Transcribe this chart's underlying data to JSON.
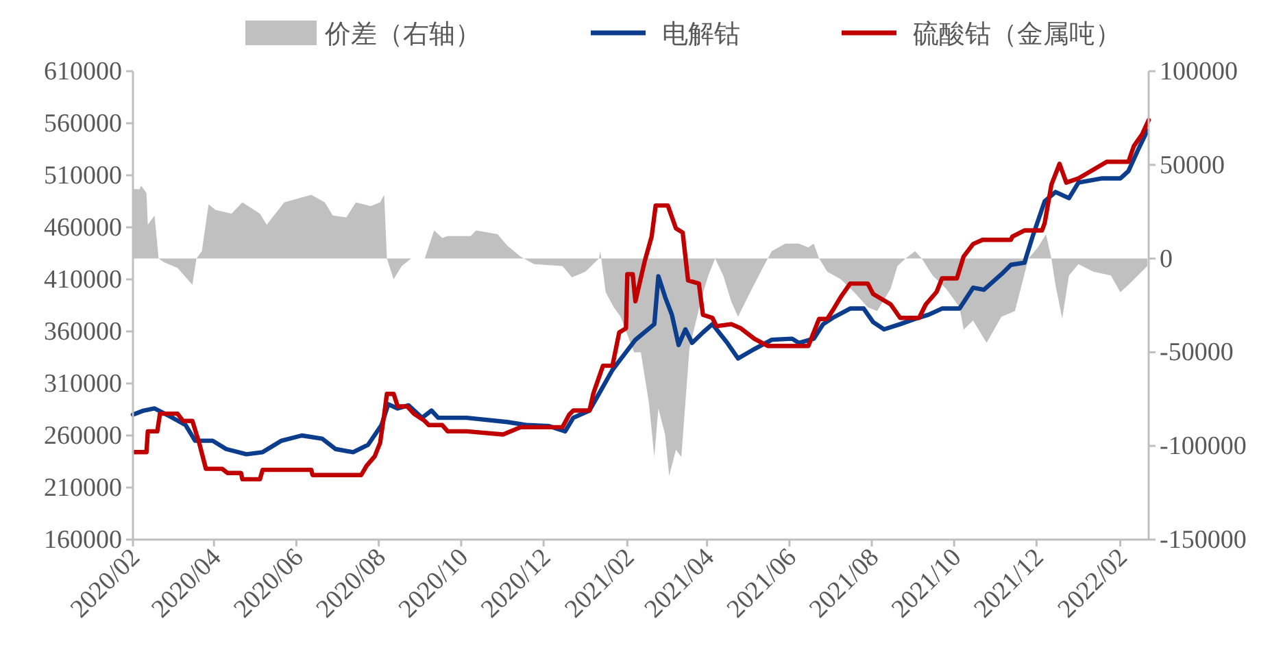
{
  "chart_data": {
    "type": "line",
    "legend": "top",
    "grid": false,
    "xlim": [
      "2020-02-01",
      "2022-02-22"
    ],
    "xticks": [
      {
        "value": "2020-02-01",
        "label": "2020/02"
      },
      {
        "value": "2020-04-01",
        "label": "2020/04"
      },
      {
        "value": "2020-06-01",
        "label": "2020/06"
      },
      {
        "value": "2020-08-01",
        "label": "2020/08"
      },
      {
        "value": "2020-10-01",
        "label": "2020/10"
      },
      {
        "value": "2020-12-01",
        "label": "2020/12"
      },
      {
        "value": "2021-02-01",
        "label": "2021/02"
      },
      {
        "value": "2021-04-01",
        "label": "2021/04"
      },
      {
        "value": "2021-06-01",
        "label": "2021/06"
      },
      {
        "value": "2021-08-01",
        "label": "2021/08"
      },
      {
        "value": "2021-10-01",
        "label": "2021/10"
      },
      {
        "value": "2021-12-01",
        "label": "2021/12"
      },
      {
        "value": "2022-02-01",
        "label": "2022/02"
      }
    ],
    "ylim": [
      160000,
      610000
    ],
    "yticks": [
      160000,
      210000,
      260000,
      310000,
      360000,
      410000,
      460000,
      510000,
      560000,
      610000
    ],
    "y2lim": [
      -150000,
      100000
    ],
    "y2ticks": [
      -150000,
      -100000,
      -50000,
      0,
      50000,
      100000
    ],
    "series": [
      {
        "name": "价差（右轴）",
        "type": "area",
        "axis": "y2",
        "color": "#c0c0c0",
        "x": [
          "2020-02-01",
          "2020-02-06",
          "2020-02-07",
          "2020-02-11",
          "2020-02-12",
          "2020-02-17",
          "2020-02-20",
          "2020-02-24",
          "2020-03-05",
          "2020-03-16",
          "2020-03-19",
          "2020-03-23",
          "2020-03-28",
          "2020-04-02",
          "2020-04-14",
          "2020-04-22",
          "2020-05-05",
          "2020-05-10",
          "2020-05-23",
          "2020-06-12",
          "2020-06-22",
          "2020-06-28",
          "2020-07-08",
          "2020-07-15",
          "2020-07-26",
          "2020-08-02",
          "2020-08-05",
          "2020-08-07",
          "2020-08-12",
          "2020-08-18",
          "2020-08-25",
          "2020-09-04",
          "2020-09-11",
          "2020-09-17",
          "2020-09-21",
          "2020-10-05",
          "2020-10-08",
          "2020-10-12",
          "2020-10-28",
          "2020-11-04",
          "2020-11-14",
          "2020-11-24",
          "2020-12-15",
          "2020-12-22",
          "2021-01-01",
          "2021-01-11",
          "2021-01-12",
          "2021-01-16",
          "2021-01-22",
          "2021-01-27",
          "2021-02-06",
          "2021-02-11",
          "2021-02-17",
          "2021-02-21",
          "2021-02-24",
          "2021-03-01",
          "2021-03-04",
          "2021-03-09",
          "2021-03-13",
          "2021-03-16",
          "2021-03-19",
          "2021-03-28",
          "2021-04-02",
          "2021-04-07",
          "2021-04-13",
          "2021-04-19",
          "2021-04-24",
          "2021-05-03",
          "2021-05-13",
          "2021-05-19",
          "2021-05-29",
          "2021-06-08",
          "2021-06-15",
          "2021-06-19",
          "2021-06-23",
          "2021-06-29",
          "2021-07-09",
          "2021-07-19",
          "2021-07-29",
          "2021-08-05",
          "2021-08-15",
          "2021-08-20",
          "2021-08-26",
          "2021-09-02",
          "2021-09-07",
          "2021-09-15",
          "2021-09-25",
          "2021-10-05",
          "2021-10-08",
          "2021-10-15",
          "2021-10-25",
          "2021-11-05",
          "2021-11-15",
          "2021-11-25",
          "2021-12-02",
          "2021-12-08",
          "2021-12-12",
          "2021-12-15",
          "2021-12-20",
          "2021-12-25",
          "2022-01-01",
          "2022-01-12",
          "2022-01-25",
          "2022-02-01",
          "2022-02-07",
          "2022-02-14",
          "2022-02-21"
        ],
        "values": [
          37000,
          37000,
          39000,
          35000,
          18000,
          23000,
          0,
          -2000,
          -5000,
          -14000,
          0,
          4000,
          29000,
          26000,
          24000,
          30000,
          24000,
          18000,
          30000,
          34000,
          30000,
          23000,
          22000,
          30000,
          28000,
          30000,
          34000,
          0,
          -11000,
          -4000,
          0,
          0,
          15000,
          11000,
          12000,
          12000,
          12000,
          15000,
          13000,
          7000,
          1000,
          -3000,
          -4000,
          -10000,
          -7000,
          0,
          4000,
          -18000,
          -26000,
          -31000,
          -50000,
          -50000,
          -77000,
          -106000,
          -80000,
          -94000,
          -116000,
          -102000,
          -106000,
          -77000,
          -48000,
          -21000,
          -9000,
          0,
          -9000,
          -23000,
          -31000,
          -18000,
          -4000,
          4000,
          8000,
          8000,
          6000,
          8000,
          0,
          -7000,
          -11000,
          -18000,
          -26000,
          -28000,
          -16000,
          -4000,
          0,
          4000,
          0,
          -9000,
          -16000,
          -26000,
          -38000,
          -33000,
          -45000,
          -31000,
          -28000,
          0,
          6000,
          13000,
          0,
          -14000,
          -32000,
          -9000,
          -3000,
          -7000,
          -9000,
          -18000,
          -14000,
          -9000,
          -4000
        ]
      },
      {
        "name": "电解钴",
        "color": "#0c3d8c",
        "x": [
          "2020-02-01",
          "2020-02-09",
          "2020-02-17",
          "2020-02-29",
          "2020-03-11",
          "2020-03-18",
          "2020-03-31",
          "2020-04-10",
          "2020-04-25",
          "2020-05-07",
          "2020-05-21",
          "2020-06-05",
          "2020-06-20",
          "2020-06-30",
          "2020-07-13",
          "2020-07-24",
          "2020-08-03",
          "2020-08-08",
          "2020-08-15",
          "2020-08-23",
          "2020-09-02",
          "2020-09-09",
          "2020-09-14",
          "2020-10-05",
          "2020-11-04",
          "2020-11-19",
          "2020-12-05",
          "2020-12-17",
          "2020-12-23",
          "2021-01-04",
          "2021-01-11",
          "2021-01-21",
          "2021-01-31",
          "2021-02-07",
          "2021-02-21",
          "2021-02-24",
          "2021-03-01",
          "2021-03-06",
          "2021-03-11",
          "2021-03-16",
          "2021-03-21",
          "2021-03-29",
          "2021-04-05",
          "2021-04-16",
          "2021-04-24",
          "2021-05-06",
          "2021-05-19",
          "2021-06-03",
          "2021-06-08",
          "2021-06-19",
          "2021-06-26",
          "2021-07-03",
          "2021-07-16",
          "2021-07-26",
          "2021-08-02",
          "2021-08-10",
          "2021-08-22",
          "2021-09-02",
          "2021-09-12",
          "2021-09-22",
          "2021-10-05",
          "2021-10-15",
          "2021-10-23",
          "2021-11-05",
          "2021-11-12",
          "2021-11-22",
          "2021-11-28",
          "2021-12-07",
          "2021-12-15",
          "2021-12-25",
          "2022-01-01",
          "2022-01-18",
          "2022-02-01",
          "2022-02-07",
          "2022-02-14",
          "2022-02-21"
        ],
        "values": [
          280000,
          284000,
          286000,
          278000,
          270000,
          255000,
          255000,
          247000,
          242000,
          244000,
          255000,
          260000,
          257000,
          247000,
          244000,
          251000,
          270000,
          290000,
          286000,
          289000,
          277000,
          284000,
          277000,
          277000,
          273000,
          270000,
          269000,
          264000,
          277000,
          284000,
          300000,
          323000,
          340000,
          352000,
          367000,
          413000,
          393000,
          376000,
          347000,
          362000,
          349000,
          359000,
          367000,
          349000,
          334000,
          343000,
          352000,
          353000,
          349000,
          353000,
          367000,
          373000,
          382000,
          382000,
          369000,
          362000,
          367000,
          372000,
          376000,
          382000,
          382000,
          402000,
          400000,
          415000,
          424000,
          426000,
          451000,
          485000,
          494000,
          488000,
          503000,
          507000,
          507000,
          514000,
          534000,
          553000
        ]
      },
      {
        "name": "硫酸钴（金属吨）",
        "color": "#c00000",
        "x": [
          "2020-02-02",
          "2020-02-11",
          "2020-02-12",
          "2020-02-19",
          "2020-02-21",
          "2020-03-05",
          "2020-03-09",
          "2020-03-16",
          "2020-03-21",
          "2020-03-26",
          "2020-04-07",
          "2020-04-11",
          "2020-04-21",
          "2020-04-22",
          "2020-05-05",
          "2020-05-07",
          "2020-06-12",
          "2020-06-13",
          "2020-07-19",
          "2020-07-23",
          "2020-07-29",
          "2020-08-02",
          "2020-08-05",
          "2020-08-07",
          "2020-08-12",
          "2020-08-15",
          "2020-08-22",
          "2020-08-27",
          "2020-09-04",
          "2020-09-07",
          "2020-09-17",
          "2020-09-21",
          "2020-10-05",
          "2020-11-01",
          "2020-11-14",
          "2020-12-15",
          "2020-12-20",
          "2020-12-23",
          "2021-01-04",
          "2021-01-07",
          "2021-01-14",
          "2021-01-21",
          "2021-01-26",
          "2021-01-31",
          "2021-02-01",
          "2021-02-05",
          "2021-02-07",
          "2021-02-14",
          "2021-02-19",
          "2021-02-22",
          "2021-03-03",
          "2021-03-09",
          "2021-03-14",
          "2021-03-18",
          "2021-03-26",
          "2021-03-29",
          "2021-04-05",
          "2021-04-08",
          "2021-04-19",
          "2021-04-26",
          "2021-05-06",
          "2021-05-16",
          "2021-06-05",
          "2021-06-15",
          "2021-06-23",
          "2021-06-29",
          "2021-07-03",
          "2021-07-09",
          "2021-07-16",
          "2021-07-29",
          "2021-08-02",
          "2021-08-15",
          "2021-08-22",
          "2021-09-05",
          "2021-09-10",
          "2021-09-18",
          "2021-09-22",
          "2021-10-03",
          "2021-10-08",
          "2021-10-15",
          "2021-10-22",
          "2021-11-12",
          "2021-11-13",
          "2021-11-22",
          "2021-12-05",
          "2021-12-07",
          "2021-12-12",
          "2021-12-18",
          "2021-12-23",
          "2022-01-01",
          "2022-01-22",
          "2022-02-07",
          "2022-02-11",
          "2022-02-17",
          "2022-02-22"
        ],
        "values": [
          244000,
          244000,
          264000,
          264000,
          281000,
          281000,
          274000,
          274000,
          253000,
          228000,
          228000,
          224000,
          224000,
          218000,
          218000,
          227000,
          227000,
          222000,
          222000,
          231000,
          240000,
          253000,
          280000,
          300000,
          300000,
          288000,
          288000,
          281000,
          274000,
          270000,
          270000,
          264000,
          264000,
          261000,
          268000,
          268000,
          280000,
          284000,
          284000,
          301000,
          327000,
          327000,
          359000,
          363000,
          415000,
          415000,
          389000,
          428000,
          451000,
          481000,
          481000,
          459000,
          455000,
          409000,
          406000,
          376000,
          373000,
          365000,
          367000,
          363000,
          353000,
          346000,
          346000,
          346000,
          372000,
          372000,
          380000,
          393000,
          406000,
          406000,
          396000,
          386000,
          373000,
          373000,
          386000,
          398000,
          411000,
          411000,
          432000,
          444000,
          448000,
          448000,
          451000,
          457000,
          457000,
          464000,
          501000,
          521000,
          503000,
          507000,
          523000,
          523000,
          538000,
          549000,
          563000
        ]
      }
    ]
  }
}
